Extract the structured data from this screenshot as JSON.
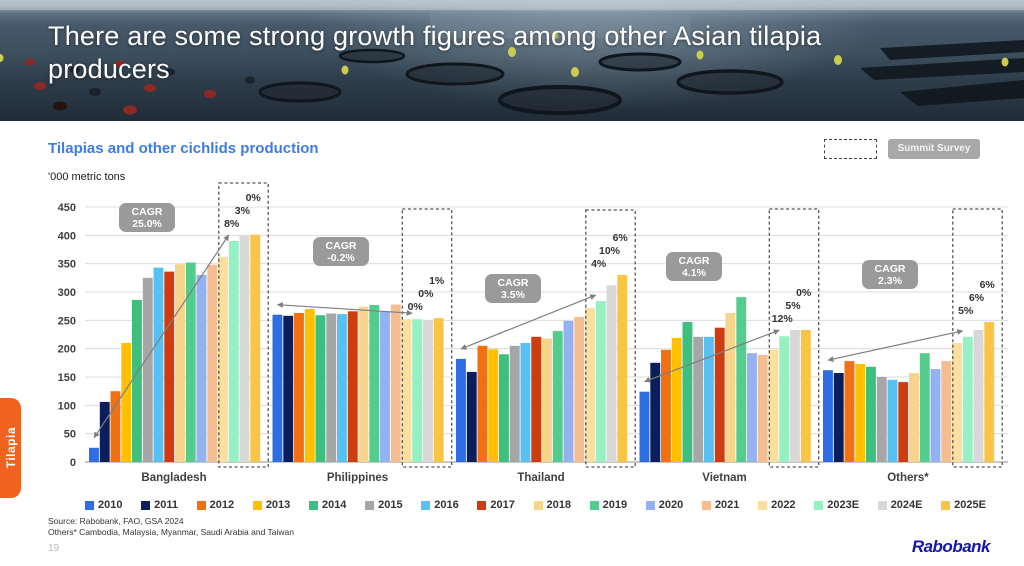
{
  "header": {
    "title": "There are some strong growth figures among other Asian tilapia producers"
  },
  "toolbar": {
    "summit_button_label": "Summit Survey"
  },
  "chart_data": {
    "type": "bar",
    "title": "Tilapias and other cichlids production",
    "units_label": "'000 metric tons",
    "xlabel": "",
    "ylabel": "'000 metric tons",
    "ylim": [
      0,
      450
    ],
    "yticks": [
      0,
      50,
      100,
      150,
      200,
      250,
      300,
      350,
      400,
      450
    ],
    "grid": true,
    "legend_position": "bottom",
    "cagr_label": "CAGR",
    "years": [
      "2010",
      "2011",
      "2012",
      "2013",
      "2014",
      "2015",
      "2016",
      "2017",
      "2018",
      "2019",
      "2020",
      "2021",
      "2022",
      "2023E",
      "2024E",
      "2025E"
    ],
    "colors": {
      "2010": "#2D6FE3",
      "2011": "#0A1E5C",
      "2012": "#F07012",
      "2013": "#FFC000",
      "2014": "#3FBF7F",
      "2015": "#A6A6A6",
      "2016": "#58C0F2",
      "2017": "#CE3D0F",
      "2018": "#F7D48B",
      "2019": "#54CC8E",
      "2020": "#94B1F2",
      "2021": "#F5BE92",
      "2022": "#FBDF9E",
      "2023E": "#95F0C2",
      "2024E": "#D8D8D8",
      "2025E": "#FAC545"
    },
    "growth_years": [
      "2023E",
      "2024E",
      "2025E"
    ],
    "groups": [
      {
        "name": "Bangladesh",
        "cagr": "25.0%",
        "growth": [
          "8%",
          "3%",
          "0%"
        ],
        "values": [
          25,
          106,
          125,
          210,
          286,
          325,
          343,
          336,
          349,
          352,
          330,
          348,
          362,
          390,
          400,
          401
        ]
      },
      {
        "name": "Philippines",
        "cagr": "-0.2%",
        "growth": [
          "0%",
          "0%",
          "1%"
        ],
        "values": [
          260,
          258,
          263,
          270,
          259,
          262,
          261,
          266,
          274,
          277,
          265,
          278,
          252,
          252,
          250,
          254
        ]
      },
      {
        "name": "Thailand",
        "cagr": "3.5%",
        "growth": [
          "4%",
          "10%",
          "6%"
        ],
        "values": [
          182,
          159,
          205,
          199,
          190,
          205,
          210,
          221,
          218,
          231,
          249,
          256,
          272,
          284,
          312,
          330
        ]
      },
      {
        "name": "Vietnam",
        "cagr": "4.1%",
        "growth": [
          "12%",
          "5%",
          "0%"
        ],
        "values": [
          124,
          175,
          198,
          219,
          247,
          221,
          221,
          237,
          263,
          291,
          192,
          189,
          198,
          222,
          233,
          233
        ]
      },
      {
        "name": "Others*",
        "cagr": "2.3%",
        "growth": [
          "5%",
          "6%",
          "6%"
        ],
        "values": [
          162,
          157,
          178,
          173,
          168,
          150,
          145,
          141,
          157,
          192,
          164,
          178,
          210,
          221,
          233,
          247
        ]
      }
    ]
  },
  "footer": {
    "source_line1": "Source: Rabobank, FAO, GSA 2024",
    "source_line2": "Others* Cambodia, Malaysia, Myanmar, Saudi Arabia and Taiwan",
    "page_number": "19",
    "logo_text": "Rabobank"
  },
  "side_tab": {
    "label": "Tilapia"
  }
}
